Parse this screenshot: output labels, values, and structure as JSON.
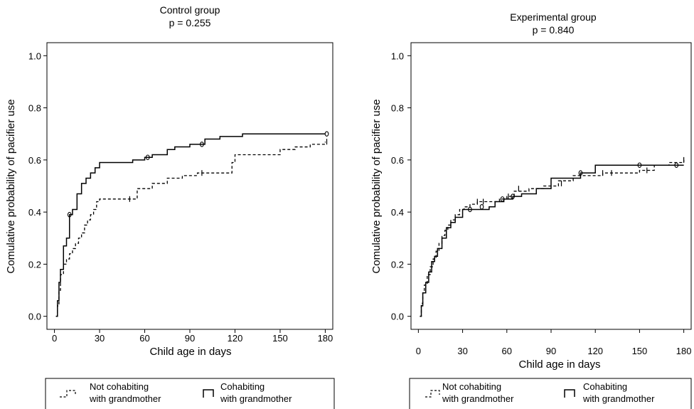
{
  "chart_data": [
    {
      "type": "line",
      "title": "Control group",
      "subtitle": "p = 0.255",
      "xlabel": "Child age in days",
      "ylabel": "Comulative probability of pacifier use",
      "xlim": [
        -5,
        185
      ],
      "ylim": [
        -0.05,
        1.05
      ],
      "xticks": [
        0,
        30,
        60,
        90,
        120,
        150,
        180
      ],
      "yticks": [
        0.0,
        0.2,
        0.4,
        0.6,
        0.8,
        1.0
      ],
      "ytick_labels": [
        "0.0",
        "0.2",
        "0.4",
        "0.6",
        "0.8",
        "1.0"
      ],
      "grid": false,
      "legend_position": "bottom",
      "series": [
        {
          "name": "Not cohabiting with grandmother",
          "style": "dashed",
          "x": [
            1,
            2,
            3,
            4,
            6,
            8,
            10,
            12,
            14,
            16,
            18,
            20,
            22,
            24,
            26,
            28,
            30,
            35,
            45,
            55,
            65,
            75,
            85,
            95,
            105,
            118,
            120,
            150,
            160,
            170,
            180
          ],
          "y": [
            0.0,
            0.04,
            0.1,
            0.16,
            0.2,
            0.22,
            0.24,
            0.26,
            0.28,
            0.3,
            0.32,
            0.35,
            0.37,
            0.39,
            0.41,
            0.44,
            0.45,
            0.45,
            0.45,
            0.49,
            0.51,
            0.53,
            0.54,
            0.55,
            0.55,
            0.59,
            0.62,
            0.64,
            0.65,
            0.66,
            0.67
          ],
          "censor_x": [
            50,
            98,
            181
          ],
          "censor_y": [
            0.45,
            0.55,
            0.67
          ]
        },
        {
          "name": "Cohabiting with grandmother",
          "style": "solid",
          "x": [
            1,
            2,
            3,
            4,
            6,
            8,
            10,
            12,
            15,
            18,
            21,
            24,
            27,
            30,
            40,
            52,
            60,
            65,
            75,
            80,
            90,
            100,
            110,
            125,
            150,
            180
          ],
          "y": [
            0.0,
            0.06,
            0.13,
            0.18,
            0.27,
            0.3,
            0.39,
            0.41,
            0.47,
            0.51,
            0.53,
            0.55,
            0.57,
            0.59,
            0.59,
            0.6,
            0.61,
            0.62,
            0.64,
            0.65,
            0.66,
            0.68,
            0.69,
            0.7,
            0.7,
            0.7
          ],
          "censor_x": [
            10,
            62,
            98,
            181
          ],
          "censor_y": [
            0.39,
            0.61,
            0.66,
            0.7
          ]
        }
      ]
    },
    {
      "type": "line",
      "title": "Experimental group",
      "subtitle": "p = 0.840",
      "xlabel": "Child age in days",
      "ylabel": "Comulative probability of pacifier use",
      "xlim": [
        -5,
        185
      ],
      "ylim": [
        -0.05,
        1.05
      ],
      "xticks": [
        0,
        30,
        60,
        90,
        120,
        150,
        180
      ],
      "yticks": [
        0.0,
        0.2,
        0.4,
        0.6,
        0.8,
        1.0
      ],
      "ytick_labels": [
        "0.0",
        "0.2",
        "0.4",
        "0.6",
        "0.8",
        "1.0"
      ],
      "grid": false,
      "legend_position": "bottom",
      "series": [
        {
          "name": "Not cohabiting with grandmother",
          "style": "dashed",
          "x": [
            1,
            2,
            3,
            4,
            6,
            8,
            10,
            12,
            14,
            16,
            18,
            20,
            22,
            25,
            28,
            31,
            35,
            40,
            48,
            55,
            60,
            65,
            75,
            85,
            95,
            105,
            115,
            125,
            140,
            150,
            160,
            170,
            180
          ],
          "y": [
            0.0,
            0.05,
            0.09,
            0.12,
            0.16,
            0.19,
            0.22,
            0.25,
            0.28,
            0.31,
            0.33,
            0.35,
            0.37,
            0.39,
            0.41,
            0.42,
            0.43,
            0.44,
            0.44,
            0.45,
            0.46,
            0.48,
            0.49,
            0.5,
            0.52,
            0.54,
            0.54,
            0.55,
            0.55,
            0.56,
            0.58,
            0.59,
            0.6
          ],
          "censor_x": [
            40,
            44,
            61,
            68,
            97,
            125,
            131,
            155,
            180
          ],
          "censor_y": [
            0.44,
            0.44,
            0.46,
            0.49,
            0.51,
            0.55,
            0.55,
            0.56,
            0.6
          ]
        },
        {
          "name": "Cohabiting with grandmother",
          "style": "solid",
          "x": [
            1,
            2,
            3,
            5,
            7,
            9,
            11,
            13,
            16,
            19,
            22,
            25,
            30,
            40,
            48,
            52,
            58,
            64,
            70,
            80,
            90,
            100,
            110,
            120,
            140,
            160,
            180
          ],
          "y": [
            0.0,
            0.04,
            0.09,
            0.13,
            0.17,
            0.21,
            0.23,
            0.26,
            0.3,
            0.34,
            0.36,
            0.38,
            0.41,
            0.41,
            0.42,
            0.44,
            0.45,
            0.46,
            0.47,
            0.49,
            0.53,
            0.53,
            0.55,
            0.58,
            0.58,
            0.58,
            0.58
          ],
          "censor_x": [
            35,
            43,
            57,
            64,
            110,
            150,
            175
          ],
          "censor_y": [
            0.41,
            0.42,
            0.45,
            0.46,
            0.55,
            0.58,
            0.58
          ]
        }
      ]
    }
  ]
}
